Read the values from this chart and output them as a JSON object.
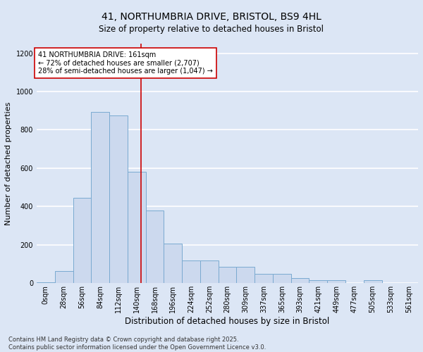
{
  "title_line1": "41, NORTHUMBRIA DRIVE, BRISTOL, BS9 4HL",
  "title_line2": "Size of property relative to detached houses in Bristol",
  "xlabel": "Distribution of detached houses by size in Bristol",
  "ylabel": "Number of detached properties",
  "footnote": "Contains HM Land Registry data © Crown copyright and database right 2025.\nContains public sector information licensed under the Open Government Licence v3.0.",
  "bin_labels": [
    "0sqm",
    "28sqm",
    "56sqm",
    "84sqm",
    "112sqm",
    "140sqm",
    "168sqm",
    "196sqm",
    "224sqm",
    "252sqm",
    "280sqm",
    "309sqm",
    "337sqm",
    "365sqm",
    "393sqm",
    "421sqm",
    "449sqm",
    "477sqm",
    "505sqm",
    "533sqm",
    "561sqm"
  ],
  "bar_heights": [
    5,
    65,
    445,
    895,
    875,
    580,
    380,
    205,
    120,
    120,
    85,
    85,
    50,
    50,
    25,
    15,
    15,
    0,
    15,
    0,
    0
  ],
  "bar_color": "#ccd9ee",
  "bar_edge_color": "#7aaad0",
  "vline_color": "#cc0000",
  "annotation_text": "41 NORTHUMBRIA DRIVE: 161sqm\n← 72% of detached houses are smaller (2,707)\n28% of semi-detached houses are larger (1,047) →",
  "annotation_box_color": "#ffffff",
  "annotation_box_edge": "#cc0000",
  "ylim": [
    0,
    1250
  ],
  "yticks": [
    0,
    200,
    400,
    600,
    800,
    1000,
    1200
  ],
  "bg_color": "#dce6f5",
  "plot_bg_color": "#dce6f5",
  "grid_color": "#ffffff",
  "bin_width": 28,
  "property_sqm": 161,
  "title_fontsize": 10,
  "subtitle_fontsize": 8.5,
  "ylabel_fontsize": 8,
  "xlabel_fontsize": 8.5,
  "tick_fontsize": 7,
  "annot_fontsize": 7,
  "footnote_fontsize": 6
}
